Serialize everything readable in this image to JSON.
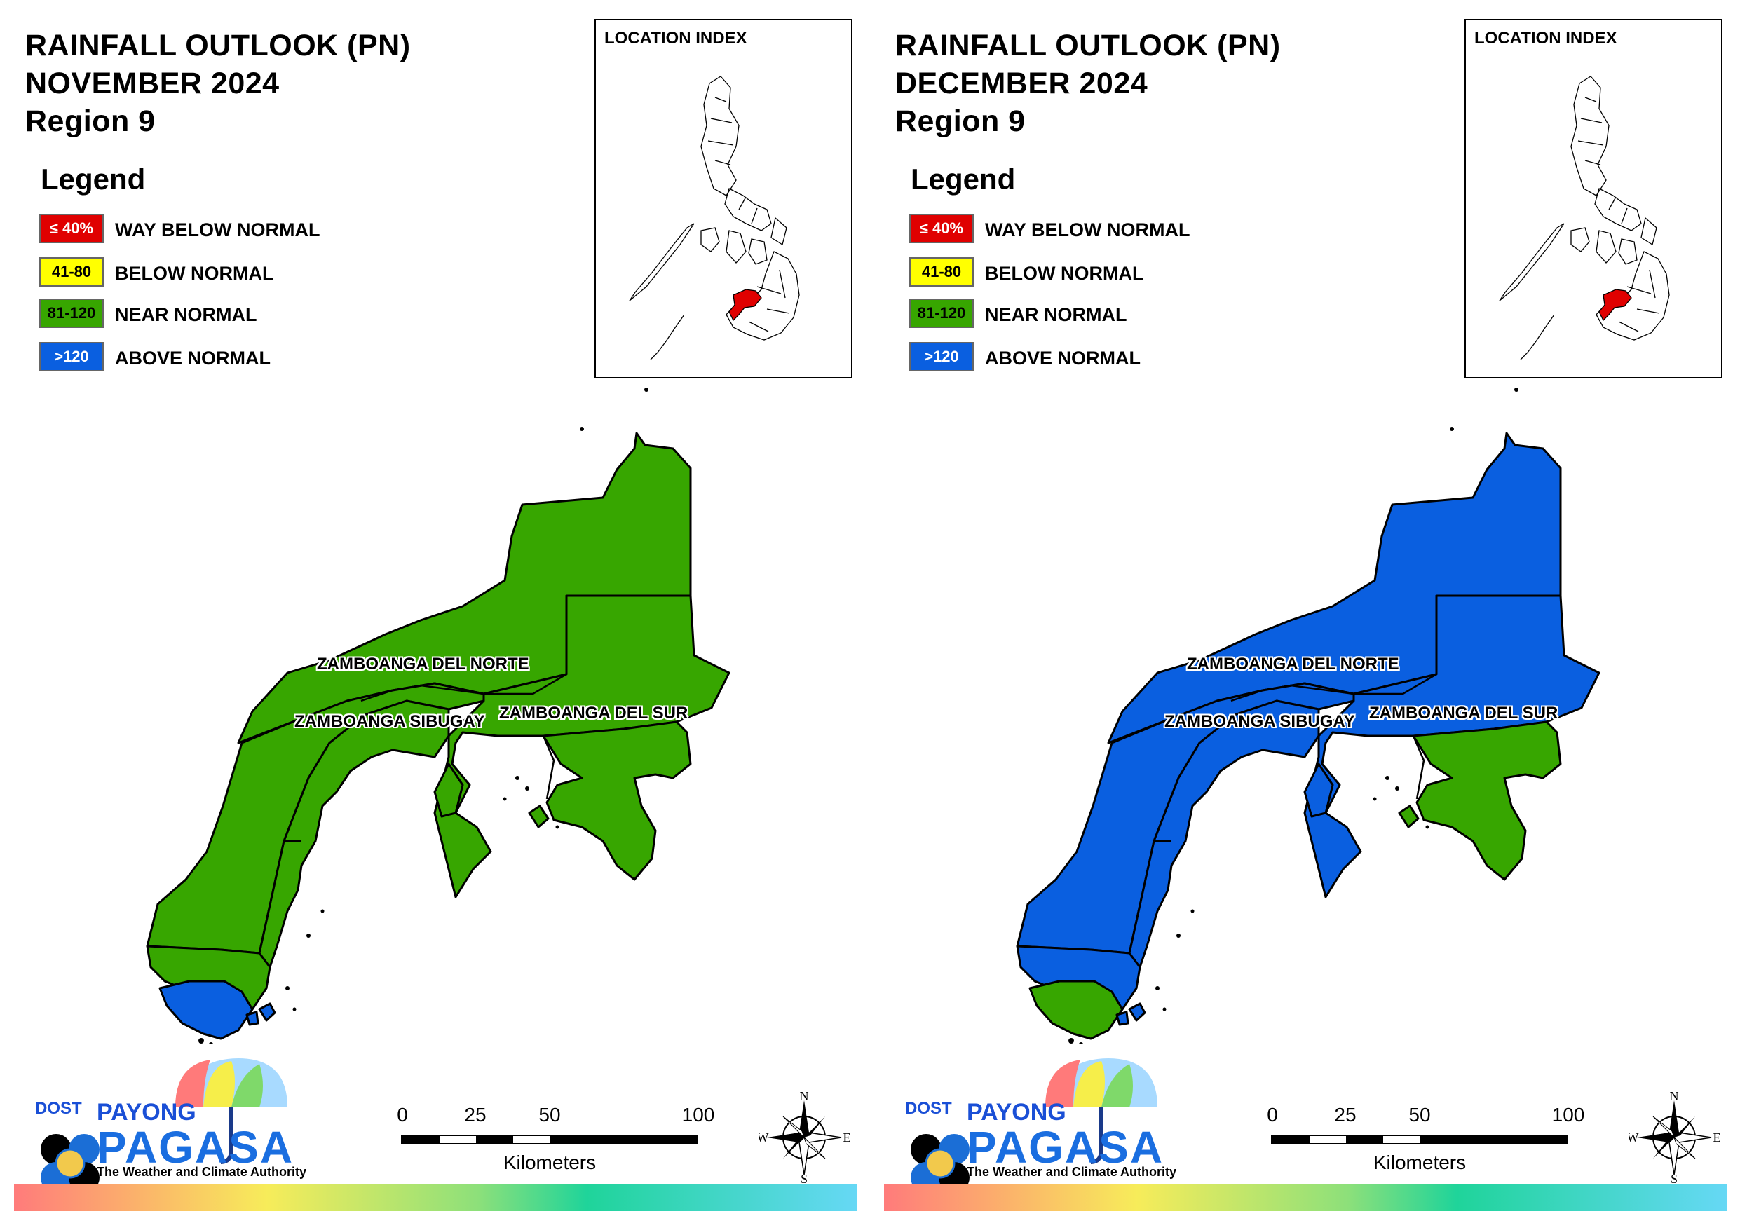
{
  "panels": [
    {
      "title_line1": "RAINFALL OUTLOOK (PN)",
      "title_line2": "NOVEMBER 2024",
      "title_line3": "Region 9",
      "fills": {
        "north": "#37a600",
        "sibugay": "#37a600",
        "sur": "#37a600",
        "sur_se": "#37a600",
        "tip": "#0a5fe0"
      }
    },
    {
      "title_line1": "RAINFALL OUTLOOK (PN)",
      "title_line2": "DECEMBER 2024",
      "title_line3": "Region 9",
      "fills": {
        "north": "#0a5fe0",
        "sibugay": "#0a5fe0",
        "sur": "#0a5fe0",
        "sur_se": "#37a600",
        "tip": "#37a600"
      }
    }
  ],
  "legend": {
    "title": "Legend",
    "items": [
      {
        "range": "≤ 40%",
        "label": "WAY BELOW NORMAL",
        "color": "#e00000",
        "text_color": "#ffffff"
      },
      {
        "range": "41-80",
        "label": "BELOW NORMAL",
        "color": "#ffff00",
        "text_color": "#000000"
      },
      {
        "range": "81-120",
        "label": "NEAR NORMAL",
        "color": "#37a600",
        "text_color": "#000000"
      },
      {
        "range": ">120",
        "label": "ABOVE NORMAL",
        "color": "#0a5fe0",
        "text_color": "#ffffff"
      }
    ]
  },
  "inset": {
    "title": "LOCATION INDEX",
    "highlight_color": "#e00000"
  },
  "provinces": {
    "north": "ZAMBOANGA DEL NORTE",
    "sibugay": "ZAMBOANGA SIBUGAY",
    "sur": "ZAMBOANGA DEL SUR"
  },
  "logo": {
    "agency": "DOST",
    "name_top": "PAYONG",
    "name_main": "PAGASA",
    "tagline": "The Weather and Climate Authority"
  },
  "scale_bar": {
    "ticks": [
      "0",
      "25",
      "50",
      "100"
    ],
    "unit": "Kilometers"
  },
  "compass": {
    "n": "N",
    "s": "S",
    "e": "E",
    "w": "W"
  }
}
